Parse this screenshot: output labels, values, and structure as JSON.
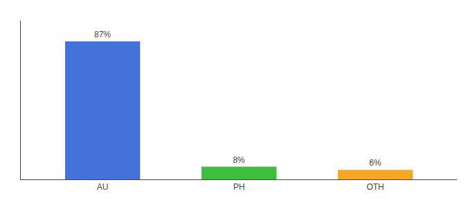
{
  "chart_data": {
    "type": "bar",
    "categories": [
      "AU",
      "PH",
      "OTH"
    ],
    "values": [
      87,
      8,
      6
    ],
    "value_labels": [
      "87%",
      "8%",
      "6%"
    ],
    "colors": [
      "#4472db",
      "#3dbf3d",
      "#f5a623"
    ],
    "ylim": [
      0,
      100
    ],
    "grid": false,
    "data_labels": true,
    "tick_labels": "x"
  }
}
